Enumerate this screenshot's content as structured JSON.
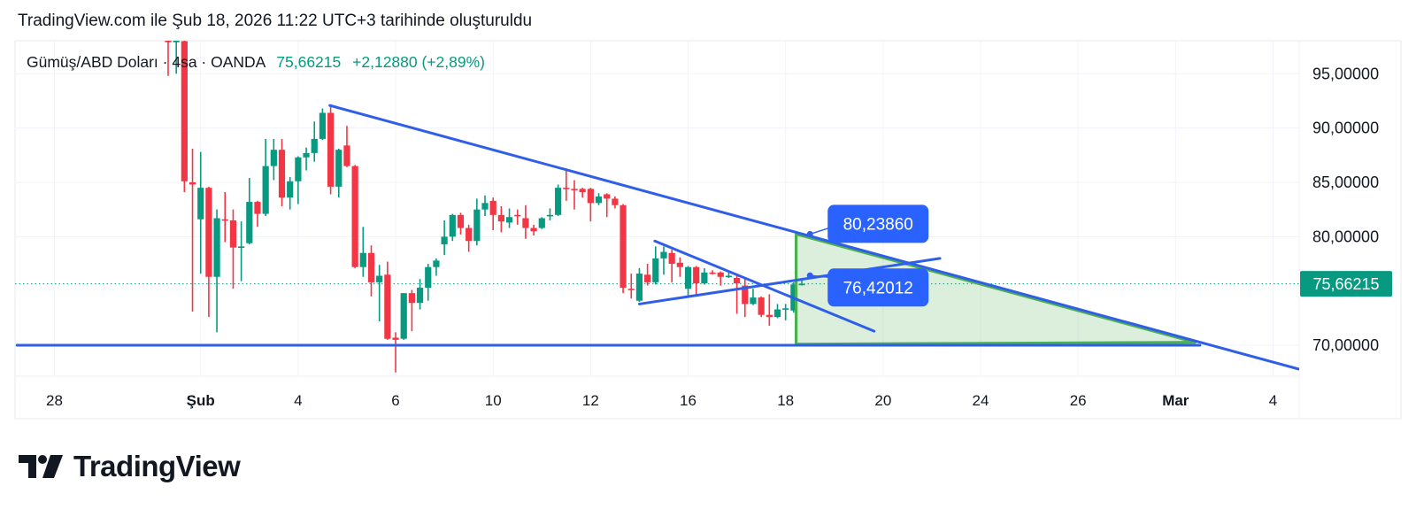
{
  "header": {
    "title": "TradingView.com ile Şub 18, 2026 11:22 UTC+3 tarihinde oluşturuldu"
  },
  "legend": {
    "symbol": "Gümüş/ABD Doları · 4sa · OANDA",
    "last": "75,66215",
    "change": "+2,12880 (+2,89%)"
  },
  "footer": {
    "brand": "TradingView"
  },
  "colors": {
    "up": "#089981",
    "down": "#f23645",
    "trendline": "#2f5ee8",
    "label_box": "#2962ff",
    "triangle_stroke": "#4caf50",
    "triangle_fill": "#4caf5033",
    "grid": "#f0f3fa"
  },
  "chart_data": {
    "type": "candlestick",
    "symbol": "Gümüş/ABD Doları",
    "interval": "4sa",
    "source": "OANDA",
    "ylim": [
      66.5,
      99
    ],
    "grid": true,
    "y_ticks": [
      {
        "value": 95,
        "label": "95,00000"
      },
      {
        "value": 90,
        "label": "90,00000"
      },
      {
        "value": 85,
        "label": "85,00000"
      },
      {
        "value": 80,
        "label": "80,00000"
      },
      {
        "value": 70,
        "label": "70,00000"
      }
    ],
    "last_price": {
      "value": 75.66215,
      "label": "75,66215"
    },
    "x_ticks": [
      {
        "bar": -14,
        "label": "28"
      },
      {
        "bar": 4,
        "label": "Şub",
        "bold": true
      },
      {
        "bar": 16,
        "label": "4"
      },
      {
        "bar": 28,
        "label": "6"
      },
      {
        "bar": 40,
        "label": "10"
      },
      {
        "bar": 52,
        "label": "12"
      },
      {
        "bar": 64,
        "label": "16"
      },
      {
        "bar": 76,
        "label": "18"
      },
      {
        "bar": 88,
        "label": "20"
      },
      {
        "bar": 100,
        "label": "24"
      },
      {
        "bar": 112,
        "label": "26"
      },
      {
        "bar": 124,
        "label": "Mar",
        "bold": true
      },
      {
        "bar": 136,
        "label": "4"
      }
    ],
    "candles_ohlc": [
      [
        98.1,
        98.2,
        94.8,
        97.9
      ],
      [
        97.9,
        98.2,
        95.0,
        98.1
      ],
      [
        98.0,
        98.1,
        84.1,
        85.1
      ],
      [
        85.0,
        88.1,
        73.1,
        84.8
      ],
      [
        81.6,
        87.8,
        76.6,
        84.5
      ],
      [
        84.5,
        84.6,
        72.6,
        76.3
      ],
      [
        76.3,
        82.5,
        71.2,
        81.7
      ],
      [
        81.6,
        84.1,
        79.5,
        81.5
      ],
      [
        81.5,
        82.5,
        75.2,
        79.0
      ],
      [
        79.1,
        81.4,
        75.9,
        79.1
      ],
      [
        79.4,
        85.4,
        79.3,
        83.2
      ],
      [
        83.2,
        83.3,
        80.9,
        82.1
      ],
      [
        82.1,
        89.0,
        81.9,
        86.5
      ],
      [
        86.5,
        89.0,
        85.2,
        88.0
      ],
      [
        88.0,
        89.0,
        82.8,
        83.6
      ],
      [
        83.6,
        85.5,
        82.5,
        85.1
      ],
      [
        85.1,
        87.4,
        83.0,
        87.3
      ],
      [
        87.3,
        88.2,
        86.1,
        87.7
      ],
      [
        87.7,
        90.6,
        86.9,
        89.0
      ],
      [
        89.0,
        91.8,
        88.9,
        91.4
      ],
      [
        91.4,
        92.1,
        83.9,
        84.6
      ],
      [
        84.6,
        88.1,
        83.6,
        88.0
      ],
      [
        88.4,
        90.2,
        86.4,
        86.5
      ],
      [
        86.5,
        86.6,
        77.1,
        77.2
      ],
      [
        77.2,
        80.9,
        76.3,
        78.5
      ],
      [
        78.5,
        79.2,
        74.5,
        75.8
      ],
      [
        75.8,
        77.4,
        72.2,
        76.4
      ],
      [
        76.5,
        77.7,
        70.5,
        70.6
      ],
      [
        70.7,
        71.2,
        67.5,
        70.5
      ],
      [
        70.6,
        74.8,
        70.5,
        74.8
      ],
      [
        74.8,
        75.1,
        71.3,
        73.9
      ],
      [
        73.9,
        76.1,
        73.3,
        75.3
      ],
      [
        75.3,
        77.5,
        74.1,
        77.2
      ],
      [
        77.2,
        78.0,
        76.4,
        77.8
      ],
      [
        79.3,
        81.5,
        78.3,
        80.0
      ],
      [
        80.0,
        82.1,
        79.6,
        82.0
      ],
      [
        82.0,
        82.2,
        80.2,
        80.8
      ],
      [
        80.8,
        81.1,
        78.6,
        79.6
      ],
      [
        79.6,
        83.5,
        79.2,
        82.5
      ],
      [
        82.5,
        83.8,
        81.9,
        83.1
      ],
      [
        83.3,
        83.6,
        80.6,
        82.0
      ],
      [
        82.0,
        82.8,
        80.4,
        81.4
      ],
      [
        81.3,
        82.6,
        80.8,
        81.8
      ],
      [
        82.0,
        82.5,
        81.1,
        81.9
      ],
      [
        81.7,
        82.9,
        79.8,
        80.8
      ],
      [
        80.8,
        81.1,
        80.1,
        80.5
      ],
      [
        80.8,
        81.8,
        80.7,
        81.7
      ],
      [
        81.9,
        82.6,
        81.5,
        82.0
      ],
      [
        82.0,
        84.8,
        81.9,
        84.5
      ],
      [
        84.5,
        86.1,
        83.3,
        84.4
      ],
      [
        84.4,
        85.2,
        82.5,
        84.3
      ],
      [
        84.4,
        84.5,
        83.6,
        84.1
      ],
      [
        84.4,
        84.5,
        81.4,
        83.1
      ],
      [
        83.1,
        84.0,
        82.9,
        83.7
      ],
      [
        83.9,
        84.0,
        81.8,
        83.5
      ],
      [
        83.5,
        83.7,
        82.6,
        82.9
      ],
      [
        82.9,
        83.0,
        74.8,
        75.3
      ],
      [
        75.2,
        76.6,
        74.3,
        75.1
      ],
      [
        74.1,
        77.1,
        74.0,
        76.6
      ],
      [
        76.5,
        77.5,
        75.5,
        75.8
      ],
      [
        75.8,
        79.1,
        75.6,
        78.0
      ],
      [
        78.0,
        79.1,
        76.5,
        78.6
      ],
      [
        78.5,
        78.8,
        75.8,
        77.5
      ],
      [
        77.6,
        78.1,
        76.3,
        77.2
      ],
      [
        75.2,
        77.3,
        74.6,
        77.2
      ],
      [
        77.2,
        77.3,
        74.6,
        75.7
      ],
      [
        75.7,
        77.1,
        75.6,
        76.7
      ],
      [
        76.7,
        76.9,
        76.5,
        76.6
      ],
      [
        76.7,
        76.8,
        75.5,
        76.3
      ],
      [
        76.4,
        76.7,
        76.2,
        76.4
      ],
      [
        76.2,
        76.6,
        72.9,
        75.7
      ],
      [
        75.5,
        76.1,
        72.6,
        73.8
      ],
      [
        73.8,
        75.2,
        73.7,
        74.4
      ],
      [
        74.4,
        74.5,
        72.6,
        72.8
      ],
      [
        72.8,
        74.7,
        71.8,
        72.6
      ],
      [
        72.6,
        73.8,
        72.5,
        73.3
      ],
      [
        73.3,
        73.8,
        72.3,
        73.4
      ],
      [
        73.2,
        75.8,
        73.0,
        75.6
      ],
      [
        75.6,
        76.1,
        75.5,
        75.66
      ]
    ],
    "drawings": {
      "trendlines": [
        {
          "name": "upper-trendline",
          "from": {
            "bar": 19.9,
            "price": 92.08
          },
          "to": {
            "bar": 139.2,
            "price": 67.8
          }
        },
        {
          "name": "support-line",
          "from": {
            "bar": -18.6,
            "price": 70.0
          },
          "to": {
            "bar": 127,
            "price": 70.0
          }
        },
        {
          "name": "inner-falling-line",
          "from": {
            "bar": 59.9,
            "price": 79.6
          },
          "to": {
            "bar": 86.9,
            "price": 71.3
          }
        },
        {
          "name": "inner-rising-line",
          "from": {
            "bar": 58,
            "price": 73.8
          },
          "to": {
            "bar": 95,
            "price": 78.0
          }
        }
      ],
      "triangle": [
        {
          "bar": 77.3,
          "price": 80.24
        },
        {
          "bar": 77.3,
          "price": 70.1
        },
        {
          "bar": 126.4,
          "price": 70.27
        }
      ],
      "price_labels": [
        {
          "bar": 79,
          "price": 80.2386,
          "label": "80,23860",
          "side": "up"
        },
        {
          "bar": 79,
          "price": 76.42012,
          "label": "76,42012",
          "side": "down"
        }
      ]
    }
  }
}
